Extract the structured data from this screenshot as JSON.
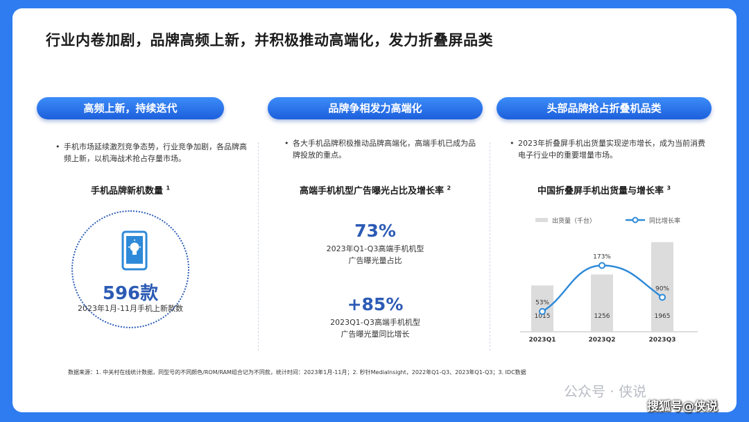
{
  "title": "行业内卷加剧，品牌高频上新，并积极推动高端化，发力折叠屏品类",
  "sections": [
    {
      "header": "高频上新，持续迭代",
      "bullet": "手机市场延续激烈竞争态势，行业竞争加剧，各品牌高频上新，以机海战术抢占存量市场。",
      "subtitle": "手机品牌新机数量",
      "sup": "1",
      "big_value": "596款",
      "big_caption": "2023年1月-11月手机上新款数"
    },
    {
      "header": "品牌争相发力高端化",
      "bullet": "各大手机品牌积极推动品牌高端化，高端手机已成为品牌投放的重点。",
      "subtitle": "高端手机机型广告曝光占比及增长率",
      "sup": "2",
      "stat1_value": "73%",
      "stat1_caption_l1": "2023年Q1-Q3高端手机机型",
      "stat1_caption_l2": "广告曝光量占比",
      "stat2_value": "+85%",
      "stat2_caption_l1": "2023Q1-Q3高端手机机型",
      "stat2_caption_l2": "广告曝光量同比增长"
    },
    {
      "header": "头部品牌抢占折叠机品类",
      "bullet": "2023年折叠屏手机出货量实现逆市增长，成为当前消费电子行业中的重要增量市场。",
      "subtitle": "中国折叠屏手机出货量与增长率",
      "sup": "3"
    }
  ],
  "chart_data": {
    "type": "bar",
    "categories": [
      "2023Q1",
      "2023Q2",
      "2023Q3"
    ],
    "series": [
      {
        "name": "出货量（千台）",
        "values": [
          1015,
          1256,
          1965
        ],
        "labels": [
          "1015",
          "1256",
          "1965"
        ],
        "color": "#dcdcdc"
      },
      {
        "name": "同比增长率",
        "values": [
          53,
          173,
          90
        ],
        "labels": [
          "53%",
          "173%",
          "90%"
        ],
        "color": "#2e8ad8",
        "kind": "line"
      }
    ],
    "bar_ylim": [
      0,
      2100
    ],
    "line_ylim": [
      0,
      250
    ]
  },
  "footnote": "数据来源：1. 中关村在线统计数据，同型号的不同颜色/ROM/RAM组合记为不同款，统计时间：2023年1月-11月；2. 秒针MediaInsight，2022年Q1-Q3、2023年Q1-Q3；3. IDC数据",
  "watermark_1": "公众号 · 侠说",
  "watermark_2": "搜狐号@侠说",
  "colors": {
    "accent": "#1c5fdc",
    "number": "#2c5bb5"
  }
}
